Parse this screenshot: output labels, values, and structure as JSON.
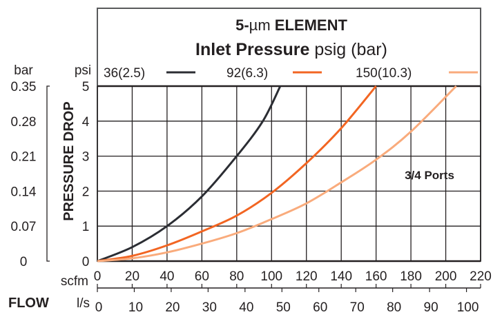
{
  "chart_data": {
    "type": "line",
    "title_prefix": "5-",
    "title_unit": "µm",
    "title_suffix": " ELEMENT",
    "subtitle_bold": "Inlet Pressure",
    "subtitle_rest": " psig (bar)",
    "annotation": "3/4 Ports",
    "ylabel": "PRESSURE DROP",
    "y_unit": "psi",
    "y2_unit": "bar",
    "xlabel": "FLOW",
    "x_unit": "scfm",
    "x2_unit": "l/s",
    "xlim": [
      0,
      220
    ],
    "ylim": [
      0,
      5
    ],
    "grid": true,
    "legend_placement": "top",
    "x_ticks": [
      "0",
      "20",
      "40",
      "60",
      "80",
      "100",
      "120",
      "140",
      "160",
      "180",
      "200",
      "220"
    ],
    "y_ticks": [
      "0",
      "1",
      "2",
      "3",
      "4",
      "5"
    ],
    "y2_ticks": [
      "0",
      "0.07",
      "0.14",
      "0.21",
      "0.28",
      "0.35"
    ],
    "x2_ticks": [
      "0",
      "10",
      "20",
      "30",
      "40",
      "50",
      "60",
      "70",
      "80",
      "90",
      "100"
    ],
    "series": [
      {
        "name": "36(2.5)",
        "color": "#2b2d33",
        "points": [
          [
            0,
            0
          ],
          [
            20,
            0.4
          ],
          [
            40,
            1
          ],
          [
            60,
            1.85
          ],
          [
            80,
            3
          ],
          [
            95,
            4
          ],
          [
            105,
            5
          ]
        ]
      },
      {
        "name": "92(6.3)",
        "color": "#f26522",
        "points": [
          [
            0,
            0
          ],
          [
            20,
            0.15
          ],
          [
            40,
            0.45
          ],
          [
            60,
            0.85
          ],
          [
            80,
            1.3
          ],
          [
            100,
            1.95
          ],
          [
            120,
            2.8
          ],
          [
            140,
            3.8
          ],
          [
            160,
            5
          ]
        ]
      },
      {
        "name": "150(10.3)",
        "color": "#f9ab7c",
        "points": [
          [
            0,
            0
          ],
          [
            20,
            0.08
          ],
          [
            40,
            0.25
          ],
          [
            60,
            0.5
          ],
          [
            80,
            0.8
          ],
          [
            100,
            1.2
          ],
          [
            120,
            1.65
          ],
          [
            140,
            2.25
          ],
          [
            160,
            2.9
          ],
          [
            180,
            3.7
          ],
          [
            206,
            5
          ]
        ]
      }
    ]
  }
}
